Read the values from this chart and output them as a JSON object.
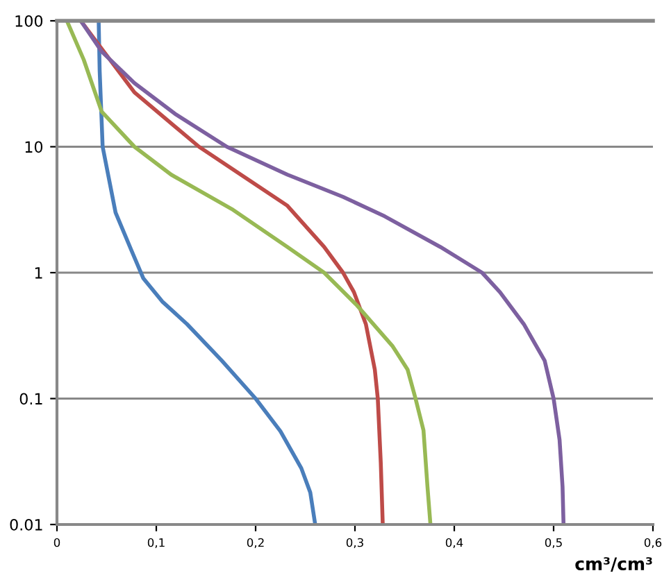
{
  "chart_data": {
    "type": "line",
    "xlabel": "cm³/cm³",
    "xlim": [
      0,
      0.6
    ],
    "xticks": [
      0,
      {
        "value": 0.1,
        "label": "0,1"
      },
      {
        "value": 0.2,
        "label": "0,2"
      },
      {
        "value": 0.3,
        "label": "0,3"
      },
      {
        "value": 0.4,
        "label": "0,4"
      },
      {
        "value": 0.5,
        "label": "0,5"
      },
      {
        "value": 0.6,
        "label": "0,6"
      }
    ],
    "ylim": [
      0.01,
      100
    ],
    "yticks": [
      0.01,
      0.1,
      1,
      10,
      100
    ],
    "log": "y",
    "grid": "y",
    "marker": "none",
    "line_style": "solid",
    "legend": false,
    "series": [
      {
        "color": "#4a7ebb",
        "x": [
          0.042,
          0.043,
          0.046,
          0.059,
          0.075,
          0.087,
          0.106,
          0.131,
          0.166,
          0.2,
          0.225,
          0.246,
          0.255,
          0.26
        ],
        "values": [
          100,
          40,
          10,
          3,
          1.5,
          0.9,
          0.59,
          0.39,
          0.2,
          0.1,
          0.055,
          0.028,
          0.018,
          0.01
        ]
      },
      {
        "color": "#be4b48",
        "x": [
          0.024,
          0.043,
          0.078,
          0.143,
          0.232,
          0.269,
          0.288,
          0.299,
          0.311,
          0.32,
          0.323,
          0.326,
          0.328
        ],
        "values": [
          100,
          63,
          27,
          10,
          3.4,
          1.6,
          1,
          0.7,
          0.39,
          0.17,
          0.1,
          0.031,
          0.01
        ]
      },
      {
        "color": "#98b954",
        "x": [
          0.01,
          0.027,
          0.045,
          0.078,
          0.115,
          0.176,
          0.232,
          0.269,
          0.302,
          0.338,
          0.353,
          0.361,
          0.369,
          0.373,
          0.376
        ],
        "values": [
          100,
          49,
          19,
          10,
          6,
          3.2,
          1.6,
          1,
          0.55,
          0.26,
          0.17,
          0.1,
          0.056,
          0.02,
          0.01
        ]
      },
      {
        "color": "#7d60a0",
        "x": [
          0.024,
          0.045,
          0.078,
          0.12,
          0.171,
          0.232,
          0.288,
          0.33,
          0.386,
          0.428,
          0.446,
          0.47,
          0.491,
          0.5,
          0.506,
          0.509,
          0.51
        ],
        "values": [
          100,
          57,
          32,
          18,
          10,
          6,
          4,
          2.8,
          1.6,
          1,
          0.7,
          0.39,
          0.2,
          0.1,
          0.047,
          0.02,
          0.01
        ]
      }
    ]
  }
}
